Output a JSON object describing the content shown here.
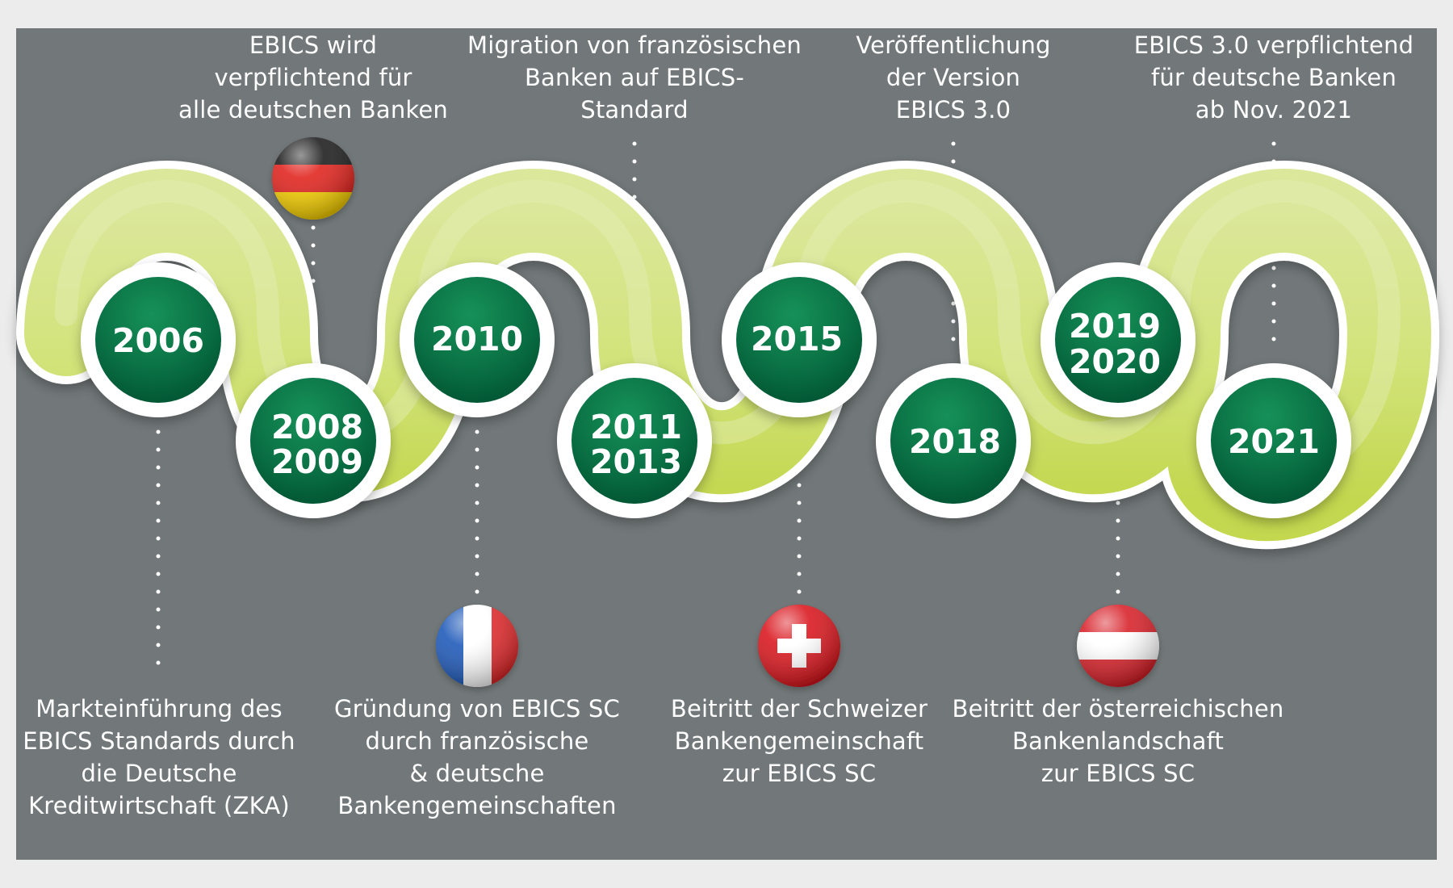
{
  "milestones": [
    {
      "year_lines": [
        "2006"
      ],
      "label": "Markteinführung des\nEBICS Standards durch\ndie Deutsche\nKreditwirtschaft (ZKA)"
    },
    {
      "year_lines": [
        "2008",
        "2009"
      ],
      "label": "EBICS wird\nverpflichtend für\nalle deutschen Banken",
      "flag": "germany-flag"
    },
    {
      "year_lines": [
        "2010"
      ],
      "label": "Gründung von EBICS SC\ndurch französische\n& deutsche\nBankengemeinschaften",
      "flag": "france-flag"
    },
    {
      "year_lines": [
        "2011",
        "2013"
      ],
      "label": "Migration von französischen\nBanken auf EBICS-\nStandard"
    },
    {
      "year_lines": [
        "2015"
      ],
      "label": "Beitritt der Schweizer\nBankengemeinschaft\nzur EBICS SC",
      "flag": "switzerland-flag"
    },
    {
      "year_lines": [
        "2018"
      ],
      "label": "Veröffentlichung\nder Version\nEBICS 3.0"
    },
    {
      "year_lines": [
        "2019",
        "2020"
      ],
      "label": "Beitritt der österreichischen\nBankenlandschaft\nzur EBICS SC",
      "flag": "austria-flag"
    },
    {
      "year_lines": [
        "2021"
      ],
      "label": "EBICS 3.0 verpflichtend\nfür deutsche Banken\nab Nov. 2021"
    }
  ],
  "colors": {
    "background": "#727879",
    "outer_background": "#ececec",
    "ribbon_light": "#dbe79a",
    "ribbon_dark": "#c3d74f",
    "ribbon_border": "#ffffff",
    "circle_green_light": "#138455",
    "circle_green_dark": "#005c35",
    "text": "#ffffff",
    "connector_dots": "#ffffff"
  }
}
